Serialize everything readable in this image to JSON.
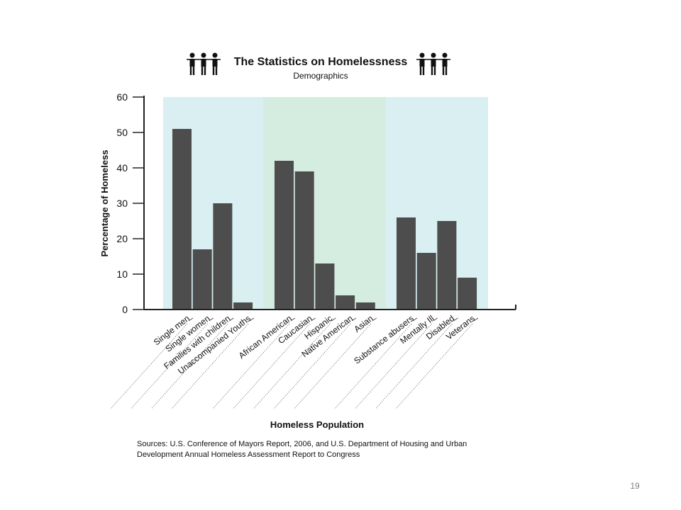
{
  "page_number": "19",
  "chart_data": {
    "type": "bar",
    "title": "The Statistics on Homelessness",
    "subtitle": "Demographics",
    "xlabel": "Homeless Population",
    "ylabel": "Percentage of Homeless",
    "ylim": [
      0,
      60
    ],
    "yticks": [
      "0",
      "10",
      "20",
      "30",
      "40",
      "50",
      "60"
    ],
    "grid": false,
    "groups": [
      {
        "categories": [
          "Single men",
          "Single women",
          "Families with children",
          "Unaccompanied Youths"
        ],
        "values": [
          51,
          17,
          30,
          2
        ],
        "color": "#d9eff1"
      },
      {
        "categories": [
          "African American",
          "Caucasian",
          "Hispanic",
          "Native American",
          "Asian"
        ],
        "values": [
          42,
          39,
          13,
          4,
          2
        ],
        "color": "#d5ede0"
      },
      {
        "categories": [
          "Substance abusers",
          "Mentally Ill",
          "Disabled",
          "Veterans"
        ],
        "values": [
          26,
          16,
          25,
          9
        ],
        "color": "#d9eff1"
      }
    ],
    "bar_color": "#4d4d4d",
    "source_lines": [
      "Sources: U.S. Conference of Mayors Report, 2006, and U.S. Department of Housing and Urban",
      "Development Annual Homeless Assessment Report to Congress"
    ]
  }
}
